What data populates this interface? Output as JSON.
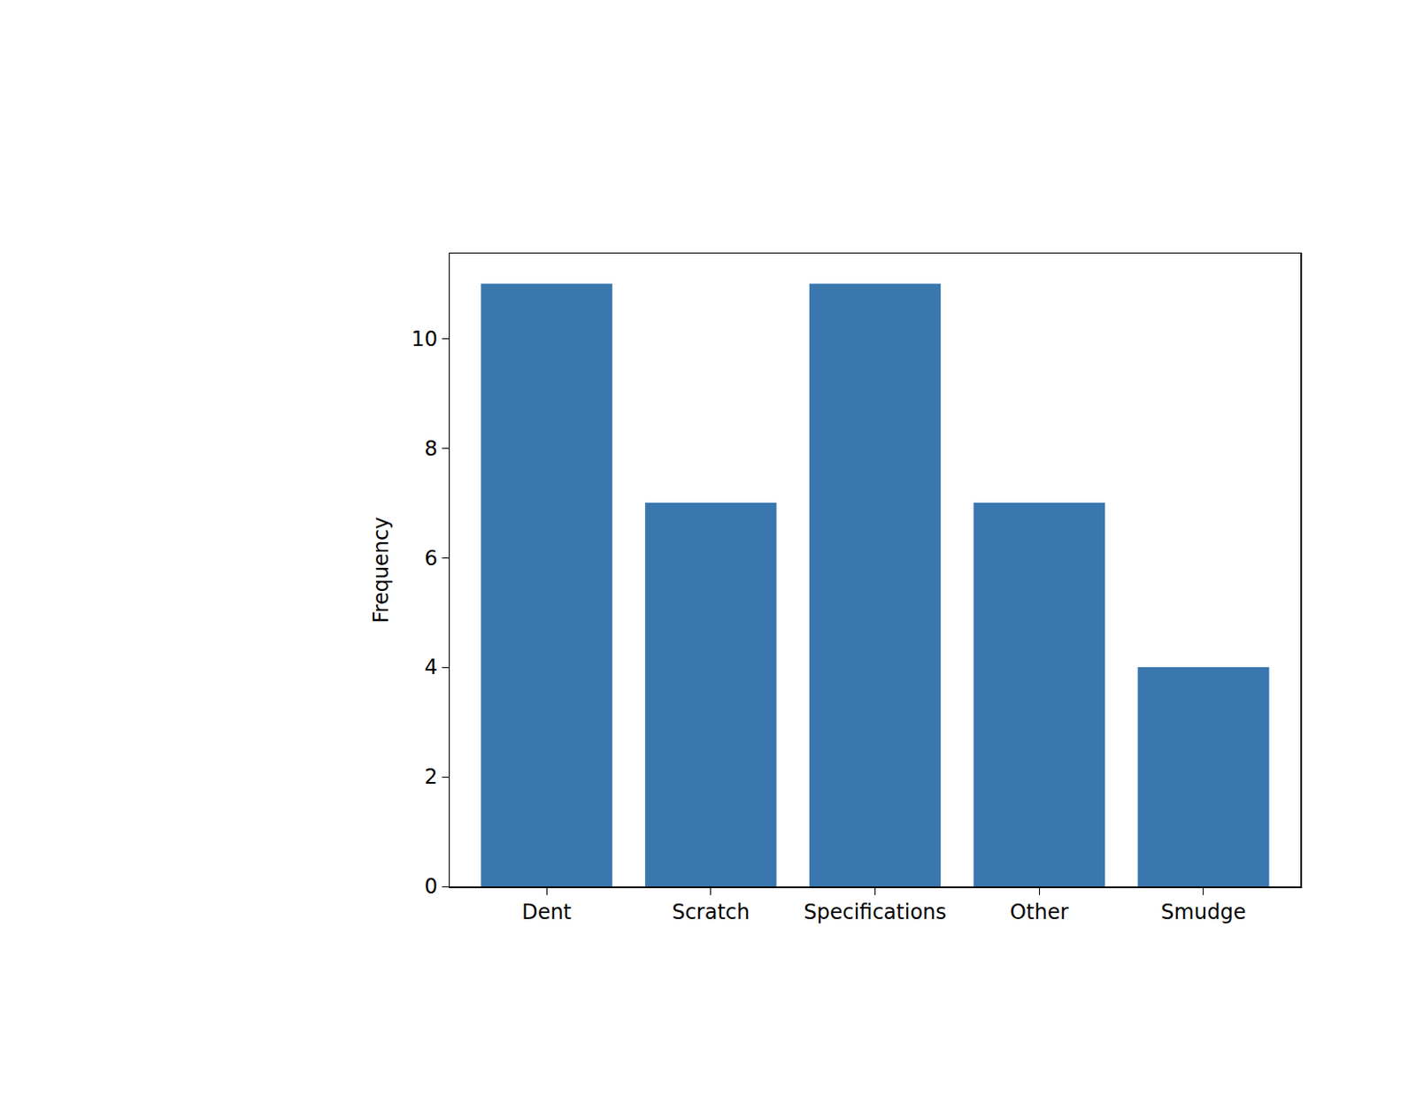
{
  "chart_data": {
    "type": "bar",
    "categories": [
      "Dent",
      "Scratch",
      "Specifications",
      "Other",
      "Smudge"
    ],
    "values": [
      11,
      7,
      11,
      7,
      4
    ],
    "color": "#3a77af",
    "y_label": "Frequency",
    "ylim": [
      0,
      11.55
    ],
    "yticks": [
      0,
      2,
      4,
      6,
      8,
      10
    ],
    "grid": false
  }
}
